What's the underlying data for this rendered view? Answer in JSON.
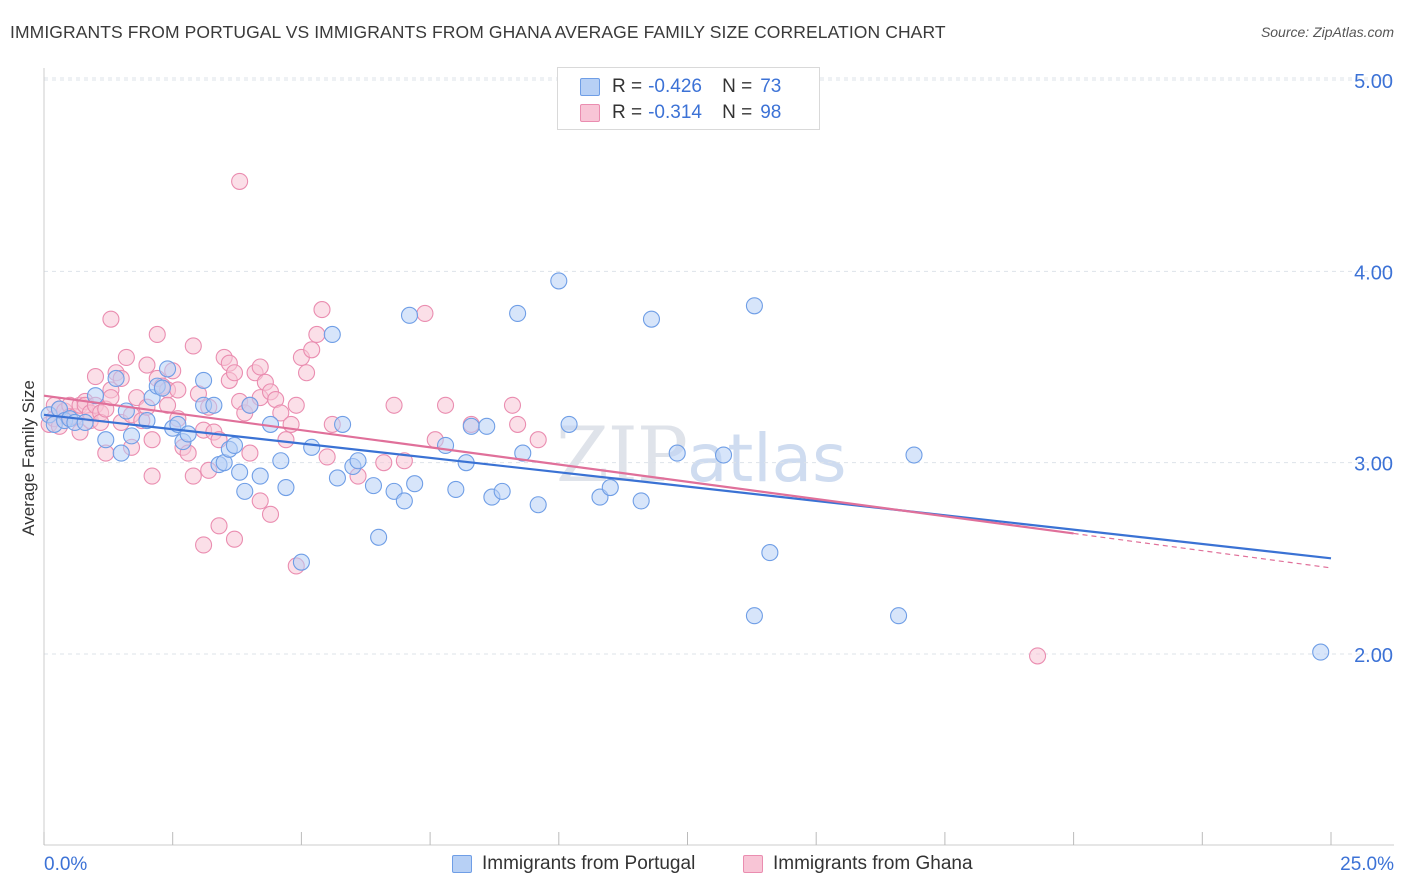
{
  "header": {
    "title": "IMMIGRANTS FROM PORTUGAL VS IMMIGRANTS FROM GHANA AVERAGE FAMILY SIZE CORRELATION CHART",
    "source": "Source: ZipAtlas.com"
  },
  "watermark": {
    "zip": "ZIP",
    "atlas": "atlas"
  },
  "legend": {
    "portugal": {
      "r_label": "R =",
      "r_value": "-0.426",
      "n_label": "N =",
      "n_value": "73"
    },
    "ghana": {
      "r_label": "R =",
      "r_value": "-0.314",
      "n_label": "N =",
      "n_value": "98"
    }
  },
  "colors": {
    "portugal_fill": "#b7d0f5",
    "portugal_stroke": "#6f9ee6",
    "portugal_line": "#3a72d4",
    "ghana_fill": "#f8c5d6",
    "ghana_stroke": "#ea8db0",
    "ghana_line": "#e0709a",
    "tick_label": "#3c72d6",
    "grid": "#dde3ea"
  },
  "chart_data": {
    "type": "scatter",
    "title": "IMMIGRANTS FROM PORTUGAL VS IMMIGRANTS FROM GHANA AVERAGE FAMILY SIZE CORRELATION CHART",
    "xlabel": "",
    "ylabel": "Average Family Size",
    "xlim": [
      0,
      25
    ],
    "ylim": [
      1.0,
      5.1
    ],
    "x_tick_labels": [
      "0.0%",
      "25.0%"
    ],
    "y_ticks": [
      2.0,
      3.0,
      4.0,
      5.0
    ],
    "y_tick_labels": [
      "2.00",
      "3.00",
      "4.00",
      "5.00"
    ],
    "grid": true,
    "legend_position": "bottom",
    "series": [
      {
        "name": "Immigrants from Portugal",
        "color": "blue",
        "trend": {
          "x": [
            0,
            25
          ],
          "y": [
            3.25,
            2.5
          ]
        },
        "points": [
          [
            0.1,
            3.25
          ],
          [
            0.2,
            3.2
          ],
          [
            0.3,
            3.28
          ],
          [
            0.4,
            3.22
          ],
          [
            0.5,
            3.23
          ],
          [
            0.6,
            3.21
          ],
          [
            0.8,
            3.21
          ],
          [
            1.0,
            3.35
          ],
          [
            1.2,
            3.12
          ],
          [
            1.4,
            3.44
          ],
          [
            1.5,
            3.05
          ],
          [
            1.6,
            3.27
          ],
          [
            1.7,
            3.14
          ],
          [
            2.0,
            3.22
          ],
          [
            2.1,
            3.34
          ],
          [
            2.2,
            3.4
          ],
          [
            2.3,
            3.39
          ],
          [
            2.4,
            3.49
          ],
          [
            2.5,
            3.18
          ],
          [
            2.6,
            3.2
          ],
          [
            2.7,
            3.11
          ],
          [
            2.8,
            3.15
          ],
          [
            3.1,
            3.3
          ],
          [
            3.1,
            3.43
          ],
          [
            3.3,
            3.3
          ],
          [
            3.4,
            2.99
          ],
          [
            3.5,
            3.0
          ],
          [
            3.6,
            3.07
          ],
          [
            3.7,
            3.09
          ],
          [
            3.8,
            2.95
          ],
          [
            3.9,
            2.85
          ],
          [
            4.0,
            3.3
          ],
          [
            4.2,
            2.93
          ],
          [
            4.4,
            3.2
          ],
          [
            4.6,
            3.01
          ],
          [
            4.7,
            2.87
          ],
          [
            5.0,
            2.48
          ],
          [
            5.2,
            3.08
          ],
          [
            5.6,
            3.67
          ],
          [
            5.7,
            2.92
          ],
          [
            5.8,
            3.2
          ],
          [
            6.0,
            2.98
          ],
          [
            6.1,
            3.01
          ],
          [
            6.4,
            2.88
          ],
          [
            6.5,
            2.61
          ],
          [
            6.8,
            2.85
          ],
          [
            7.0,
            2.8
          ],
          [
            7.1,
            3.77
          ],
          [
            7.2,
            2.89
          ],
          [
            7.8,
            3.09
          ],
          [
            8.0,
            2.86
          ],
          [
            8.2,
            3.0
          ],
          [
            8.3,
            3.19
          ],
          [
            8.6,
            3.19
          ],
          [
            8.7,
            2.82
          ],
          [
            8.9,
            2.85
          ],
          [
            9.2,
            3.78
          ],
          [
            9.3,
            3.05
          ],
          [
            9.6,
            2.78
          ],
          [
            10.0,
            3.95
          ],
          [
            10.2,
            3.2
          ],
          [
            10.8,
            2.82
          ],
          [
            11.0,
            2.87
          ],
          [
            11.6,
            2.8
          ],
          [
            11.8,
            3.75
          ],
          [
            12.3,
            3.05
          ],
          [
            13.2,
            3.04
          ],
          [
            13.8,
            3.82
          ],
          [
            14.1,
            2.53
          ],
          [
            13.8,
            2.2
          ],
          [
            16.6,
            2.2
          ],
          [
            16.9,
            3.04
          ],
          [
            24.8,
            2.01
          ]
        ]
      },
      {
        "name": "Immigrants from Ghana",
        "color": "pink",
        "trend": {
          "x": [
            0,
            20
          ],
          "y": [
            3.35,
            2.63
          ]
        },
        "trend_dashed": {
          "x": [
            20,
            25
          ],
          "y": [
            2.63,
            2.45
          ]
        },
        "points": [
          [
            0.1,
            3.2
          ],
          [
            0.2,
            3.3
          ],
          [
            0.2,
            3.23
          ],
          [
            0.3,
            3.19
          ],
          [
            0.3,
            3.28
          ],
          [
            0.4,
            3.27
          ],
          [
            0.5,
            3.3
          ],
          [
            0.5,
            3.24
          ],
          [
            0.6,
            3.24
          ],
          [
            0.7,
            3.3
          ],
          [
            0.7,
            3.16
          ],
          [
            0.8,
            3.32
          ],
          [
            0.8,
            3.3
          ],
          [
            0.9,
            3.22
          ],
          [
            0.9,
            3.26
          ],
          [
            1.0,
            3.3
          ],
          [
            1.0,
            3.45
          ],
          [
            1.1,
            3.26
          ],
          [
            1.1,
            3.21
          ],
          [
            1.2,
            3.05
          ],
          [
            1.2,
            3.28
          ],
          [
            1.3,
            3.38
          ],
          [
            1.3,
            3.34
          ],
          [
            1.3,
            3.75
          ],
          [
            1.4,
            3.47
          ],
          [
            1.5,
            3.21
          ],
          [
            1.5,
            3.44
          ],
          [
            1.6,
            3.55
          ],
          [
            1.7,
            3.08
          ],
          [
            1.7,
            3.25
          ],
          [
            1.8,
            3.34
          ],
          [
            1.9,
            3.22
          ],
          [
            2.0,
            3.51
          ],
          [
            2.0,
            3.29
          ],
          [
            2.1,
            3.12
          ],
          [
            2.1,
            2.93
          ],
          [
            2.2,
            3.67
          ],
          [
            2.2,
            3.44
          ],
          [
            2.3,
            3.4
          ],
          [
            2.4,
            3.38
          ],
          [
            2.4,
            3.3
          ],
          [
            2.5,
            3.48
          ],
          [
            2.6,
            3.38
          ],
          [
            2.6,
            3.23
          ],
          [
            2.7,
            3.08
          ],
          [
            2.8,
            3.05
          ],
          [
            2.9,
            3.61
          ],
          [
            2.9,
            2.93
          ],
          [
            3.0,
            3.36
          ],
          [
            3.1,
            3.17
          ],
          [
            3.2,
            3.29
          ],
          [
            3.2,
            2.96
          ],
          [
            3.3,
            3.16
          ],
          [
            3.4,
            3.12
          ],
          [
            3.4,
            2.67
          ],
          [
            3.5,
            3.55
          ],
          [
            3.6,
            3.52
          ],
          [
            3.6,
            3.43
          ],
          [
            3.7,
            3.47
          ],
          [
            3.8,
            3.32
          ],
          [
            3.9,
            3.26
          ],
          [
            4.0,
            3.3
          ],
          [
            4.0,
            3.05
          ],
          [
            4.1,
            3.47
          ],
          [
            4.2,
            3.5
          ],
          [
            4.2,
            3.34
          ],
          [
            4.3,
            3.42
          ],
          [
            4.4,
            3.37
          ],
          [
            4.5,
            3.33
          ],
          [
            4.6,
            3.26
          ],
          [
            4.7,
            3.12
          ],
          [
            4.8,
            3.2
          ],
          [
            4.9,
            3.3
          ],
          [
            5.0,
            3.55
          ],
          [
            5.1,
            3.47
          ],
          [
            5.2,
            3.59
          ],
          [
            5.3,
            3.67
          ],
          [
            5.4,
            3.8
          ],
          [
            5.5,
            3.03
          ],
          [
            5.6,
            3.2
          ],
          [
            6.1,
            2.93
          ],
          [
            6.6,
            3.0
          ],
          [
            6.8,
            3.3
          ],
          [
            7.0,
            3.01
          ],
          [
            7.4,
            3.78
          ],
          [
            7.6,
            3.12
          ],
          [
            8.3,
            3.2
          ],
          [
            9.2,
            3.2
          ],
          [
            3.1,
            2.57
          ],
          [
            3.7,
            2.6
          ],
          [
            4.2,
            2.8
          ],
          [
            4.4,
            2.73
          ],
          [
            4.9,
            2.46
          ],
          [
            3.8,
            4.47
          ],
          [
            9.1,
            3.3
          ],
          [
            9.6,
            3.12
          ],
          [
            19.3,
            1.99
          ],
          [
            7.8,
            3.3
          ]
        ]
      }
    ]
  },
  "bottom_legend": {
    "portugal": "Immigrants from Portugal",
    "ghana": "Immigrants from Ghana"
  }
}
